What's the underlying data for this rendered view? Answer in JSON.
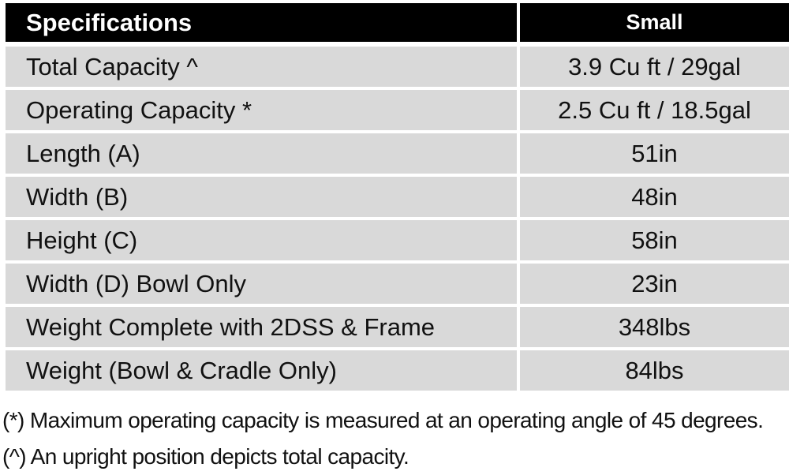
{
  "table": {
    "header": {
      "label": "Specifications",
      "value": "Small"
    },
    "rows": [
      {
        "label": "Total Capacity ^",
        "value": "3.9 Cu ft / 29gal"
      },
      {
        "label": "Operating Capacity *",
        "value": "2.5 Cu ft / 18.5gal"
      },
      {
        "label": "Length (A)",
        "value": "51in"
      },
      {
        "label": "Width (B)",
        "value": "48in"
      },
      {
        "label": "Height (C)",
        "value": "58in"
      },
      {
        "label": "Width (D) Bowl Only",
        "value": "23in"
      },
      {
        "label": "Weight Complete with 2DSS & Frame",
        "value": "348lbs"
      },
      {
        "label": "Weight (Bowl & Cradle Only)",
        "value": "84lbs"
      }
    ]
  },
  "notes": [
    "(*) Maximum operating capacity is measured at an operating angle of 45 degrees.",
    "(^) An upright position depicts total capacity."
  ]
}
